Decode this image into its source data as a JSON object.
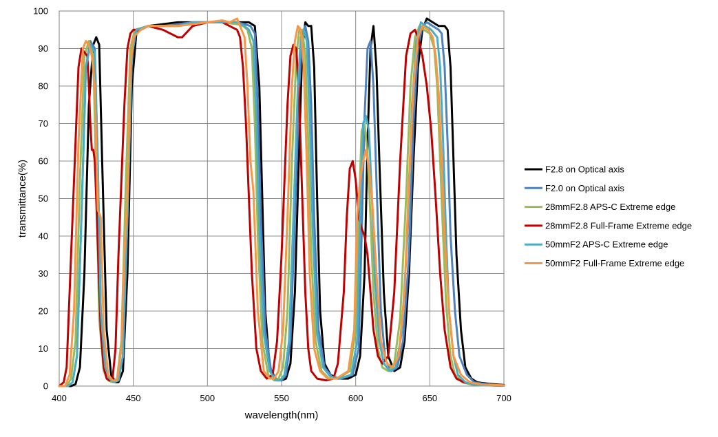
{
  "chart_data": {
    "type": "line",
    "title": "",
    "xlabel": "wavelength(nm)",
    "ylabel": "transmittance(%)",
    "xlim": [
      400,
      700
    ],
    "ylim": [
      0,
      100
    ],
    "xticks": [
      400,
      450,
      500,
      550,
      600,
      650,
      700
    ],
    "yticks": [
      0,
      10,
      20,
      30,
      40,
      50,
      60,
      70,
      80,
      90,
      100
    ],
    "grid": "vertical and horizontal",
    "legend_position": "right",
    "series": [
      {
        "name": "F2.8 on Optical axis",
        "color": "#000000",
        "x": [
          400,
          408,
          411,
          414,
          417,
          420,
          423,
          425,
          427,
          429,
          432,
          435,
          438,
          440,
          443,
          446,
          449,
          452,
          455,
          460,
          470,
          480,
          490,
          500,
          510,
          520,
          528,
          532,
          535,
          537,
          539,
          542,
          546,
          550,
          553,
          556,
          559,
          562,
          564,
          566,
          568,
          570,
          572,
          574,
          576,
          579,
          583,
          588,
          595,
          600,
          603,
          606,
          608,
          610,
          612,
          614,
          616,
          619,
          622,
          626,
          630,
          633,
          636,
          639,
          642,
          645,
          648,
          652,
          656,
          660,
          662,
          664,
          666,
          668,
          671,
          674,
          678,
          682,
          690,
          700
        ],
        "y": [
          0,
          0,
          0.5,
          5,
          30,
          75,
          91,
          93,
          91,
          60,
          15,
          3,
          1,
          1,
          4,
          30,
          80,
          94,
          95,
          96,
          96.5,
          97,
          97,
          97,
          97,
          97,
          97,
          96,
          80,
          50,
          20,
          5,
          2,
          1.5,
          2,
          6,
          25,
          65,
          90,
          97,
          96,
          96,
          85,
          50,
          20,
          6,
          3,
          2,
          2,
          3,
          8,
          30,
          65,
          90,
          96,
          85,
          60,
          25,
          8,
          4,
          5,
          12,
          30,
          60,
          85,
          95,
          98,
          97,
          96,
          96,
          95,
          85,
          60,
          35,
          15,
          5,
          2,
          1,
          0.6,
          0.3
        ]
      },
      {
        "name": "F2.0 on Optical axis",
        "color": "#4F81BD",
        "x": [
          400,
          406,
          409,
          412,
          415,
          418,
          421,
          424,
          426,
          428,
          431,
          434,
          437,
          440,
          443,
          446,
          449,
          452,
          460,
          470,
          480,
          490,
          500,
          510,
          520,
          525,
          529,
          532,
          534,
          536,
          539,
          543,
          547,
          550,
          553,
          556,
          559,
          562,
          564,
          566,
          568,
          570,
          572,
          575,
          579,
          584,
          590,
          598,
          602,
          604,
          606,
          608,
          610,
          612,
          614,
          617,
          620,
          624,
          628,
          632,
          636,
          639,
          642,
          645,
          648,
          652,
          656,
          658,
          660,
          662,
          664,
          667,
          670,
          675,
          680,
          688,
          700
        ],
        "y": [
          0,
          0,
          1,
          8,
          45,
          85,
          92,
          90,
          60,
          20,
          5,
          2,
          1,
          1.5,
          8,
          45,
          88,
          95,
          96,
          96,
          96.5,
          97,
          97,
          97,
          97,
          96.5,
          96,
          94,
          75,
          45,
          15,
          4,
          1.5,
          1.5,
          3,
          12,
          45,
          80,
          94,
          96,
          92,
          75,
          45,
          15,
          5,
          2.5,
          2,
          3,
          10,
          40,
          72,
          90,
          92,
          80,
          55,
          20,
          7,
          4,
          5,
          12,
          35,
          70,
          90,
          96,
          97,
          96,
          95,
          94,
          85,
          65,
          40,
          20,
          8,
          3,
          1,
          0.5,
          0.2
        ]
      },
      {
        "name": "28mmF2.8 APS-C Extreme edge",
        "color": "#9BBB59",
        "x": [
          400,
          405,
          408,
          411,
          414,
          417,
          420,
          423,
          425,
          427,
          430,
          433,
          436,
          439,
          442,
          445,
          448,
          451,
          460,
          470,
          480,
          490,
          500,
          510,
          520,
          524,
          527,
          530,
          532,
          534,
          537,
          541,
          545,
          548,
          551,
          554,
          557,
          560,
          562,
          564,
          566,
          568,
          570,
          573,
          577,
          582,
          588,
          596,
          600,
          602,
          604,
          606,
          608,
          610,
          612,
          615,
          618,
          622,
          626,
          630,
          634,
          637,
          640,
          643,
          646,
          650,
          653,
          655,
          657,
          659,
          661,
          664,
          667,
          672,
          678,
          686,
          700
        ],
        "y": [
          0,
          0,
          2,
          12,
          55,
          88,
          92,
          88,
          55,
          18,
          4,
          1.5,
          1,
          2,
          12,
          55,
          90,
          95,
          96,
          96,
          96,
          96.5,
          97,
          97,
          96.5,
          96,
          95,
          90,
          70,
          40,
          12,
          3,
          1.5,
          2,
          5,
          20,
          60,
          88,
          95,
          95,
          88,
          65,
          35,
          12,
          4,
          2,
          2,
          4,
          15,
          45,
          68,
          70,
          62,
          45,
          25,
          10,
          5,
          4,
          6,
          18,
          50,
          80,
          93,
          96,
          95,
          94,
          90,
          80,
          60,
          40,
          22,
          8,
          3,
          1,
          0.4,
          0.2,
          0.1
        ]
      },
      {
        "name": "28mmF2.8 Full-Frame Extreme edge",
        "color": "#C00000",
        "x": [
          400,
          403,
          405,
          407,
          409,
          411,
          413,
          415,
          417,
          419,
          420,
          421,
          422,
          423,
          424,
          425,
          426,
          428,
          430,
          432,
          434,
          436,
          438,
          440,
          442,
          444,
          446,
          448,
          450,
          455,
          460,
          470,
          480,
          483,
          490,
          500,
          510,
          515,
          520,
          522,
          524,
          526,
          528,
          530,
          533,
          536,
          540,
          544,
          547,
          550,
          552,
          554,
          556,
          558,
          560,
          562,
          564,
          566,
          568,
          570,
          574,
          580,
          585,
          588,
          592,
          594,
          596,
          598,
          600,
          602,
          604,
          606,
          608,
          610,
          612,
          615,
          618,
          622,
          626,
          630,
          634,
          637,
          640,
          642,
          645,
          648,
          651,
          654,
          657,
          660,
          664,
          668,
          673,
          680,
          690,
          700
        ],
        "y": [
          0,
          1,
          5,
          25,
          45,
          65,
          85,
          90,
          89,
          88,
          80,
          70,
          63,
          63,
          60,
          50,
          38,
          15,
          5,
          2,
          1.5,
          2,
          10,
          35,
          55,
          75,
          90,
          94,
          95,
          95,
          96,
          95,
          93,
          93,
          96,
          97,
          97,
          96,
          95,
          93,
          85,
          70,
          50,
          30,
          10,
          4,
          2,
          3,
          12,
          35,
          55,
          75,
          88,
          91,
          90,
          75,
          50,
          25,
          10,
          4,
          2,
          1.5,
          2,
          6,
          25,
          45,
          58,
          60,
          55,
          45,
          42,
          40,
          35,
          25,
          15,
          8,
          6,
          8,
          25,
          60,
          88,
          94,
          95,
          93,
          88,
          80,
          68,
          50,
          30,
          15,
          5,
          2,
          1,
          0.5,
          0.2,
          0.1
        ]
      },
      {
        "name": "50mmF2 APS-C Extreme edge",
        "color": "#4BACC6",
        "x": [
          400,
          406,
          409,
          412,
          415,
          418,
          421,
          424,
          426,
          428,
          431,
          434,
          437,
          440,
          443,
          446,
          449,
          452,
          460,
          470,
          480,
          490,
          500,
          510,
          520,
          525,
          528,
          531,
          533,
          535,
          538,
          542,
          546,
          549,
          552,
          555,
          558,
          561,
          563,
          565,
          567,
          569,
          571,
          574,
          578,
          583,
          589,
          597,
          601,
          603,
          605,
          607,
          609,
          611,
          613,
          616,
          619,
          623,
          627,
          631,
          635,
          638,
          641,
          644,
          647,
          651,
          655,
          657,
          659,
          661,
          663,
          666,
          669,
          674,
          680,
          688,
          700
        ],
        "y": [
          0,
          0,
          1,
          8,
          45,
          85,
          91,
          89,
          60,
          20,
          5,
          2,
          1,
          1.5,
          8,
          45,
          88,
          95,
          96,
          96,
          96,
          97,
          97,
          97,
          97,
          96,
          95,
          92,
          72,
          42,
          14,
          4,
          1.5,
          1.5,
          3,
          12,
          45,
          80,
          93,
          95,
          92,
          72,
          42,
          14,
          5,
          2.5,
          2,
          3,
          12,
          45,
          70,
          72,
          68,
          50,
          28,
          12,
          6,
          4,
          5,
          14,
          40,
          75,
          92,
          97,
          96,
          95,
          93,
          85,
          65,
          40,
          20,
          8,
          3,
          1,
          0.4,
          0.2,
          0.1
        ]
      },
      {
        "name": "50mmF2 Full-Frame Extreme edge",
        "color": "#F79646",
        "x": [
          400,
          404,
          407,
          410,
          413,
          416,
          418,
          420,
          422,
          424,
          426,
          428,
          430,
          433,
          436,
          439,
          442,
          444,
          446,
          448,
          450,
          455,
          460,
          470,
          480,
          490,
          500,
          510,
          515,
          520,
          522,
          525,
          527,
          529,
          531,
          534,
          538,
          542,
          545,
          548,
          551,
          554,
          557,
          559,
          561,
          563,
          565,
          567,
          569,
          572,
          576,
          581,
          587,
          595,
          599,
          601,
          603,
          605,
          607,
          609,
          611,
          614,
          617,
          621,
          625,
          629,
          633,
          636,
          639,
          642,
          645,
          649,
          652,
          654,
          656,
          658,
          660,
          663,
          666,
          671,
          677,
          685,
          700
        ],
        "y": [
          0,
          0,
          3,
          20,
          65,
          90,
          92,
          91,
          88,
          80,
          47,
          45,
          15,
          3,
          1.5,
          1.5,
          10,
          35,
          50,
          85,
          93,
          95,
          96,
          96,
          96,
          96.5,
          97,
          97.5,
          97,
          98,
          96,
          93,
          80,
          60,
          52,
          20,
          4,
          2,
          2,
          4,
          15,
          45,
          80,
          92,
          96,
          95,
          85,
          60,
          30,
          10,
          4,
          2,
          2,
          4,
          15,
          45,
          55,
          60,
          63,
          58,
          50,
          30,
          12,
          6,
          5,
          8,
          25,
          55,
          80,
          93,
          96,
          95,
          93,
          88,
          78,
          60,
          40,
          20,
          8,
          3,
          1,
          0.4,
          0.2
        ]
      }
    ]
  }
}
